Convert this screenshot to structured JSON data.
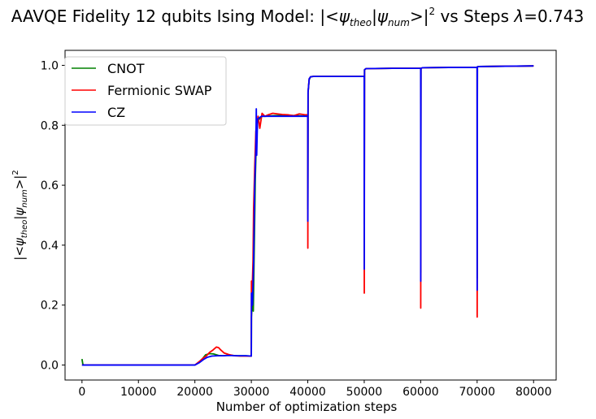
{
  "chart_data": {
    "type": "line",
    "title": {
      "main": "AAVQE Fidelity 12 qubits Ising Model: |<",
      "psi": "ψ",
      "theo": "theo",
      "bar": "|",
      "num": "num",
      "close": ">|",
      "sq": "2",
      "tail": " vs Steps ",
      "lambda": "λ",
      "value": "=0.743"
    },
    "xlabel": "Number of optimization steps",
    "ylabel": {
      "open": "|<",
      "psi": "ψ",
      "theo": "theo",
      "bar": "|",
      "num": "num",
      "close": ">|",
      "sq": "2"
    },
    "xlim": [
      -3000,
      84000
    ],
    "ylim": [
      -0.05,
      1.05
    ],
    "xticks": [
      0,
      10000,
      20000,
      30000,
      40000,
      50000,
      60000,
      70000,
      80000
    ],
    "yticks": [
      0.0,
      0.2,
      0.4,
      0.6,
      0.8,
      1.0
    ],
    "xtick_labels": [
      "0",
      "10000",
      "20000",
      "30000",
      "40000",
      "50000",
      "60000",
      "70000",
      "80000"
    ],
    "ytick_labels": [
      "0.0",
      "0.2",
      "0.4",
      "0.6",
      "0.8",
      "1.0"
    ],
    "grid": false,
    "legend_position": "upper-left",
    "series": [
      {
        "name": "CNOT",
        "color": "#008000",
        "x": [
          0,
          150,
          300,
          20000,
          20700,
          21300,
          21900,
          22600,
          23300,
          24200,
          25000,
          26000,
          27500,
          29000,
          30000,
          30020,
          30150,
          30350,
          30550,
          30700,
          30900,
          31100,
          31400,
          31800,
          32500,
          34000,
          36000,
          38000,
          40000,
          40010,
          40050,
          40250,
          40500,
          41000,
          45000,
          50000,
          50010,
          50050,
          50300,
          55000,
          60000,
          60010,
          60050,
          60300,
          65000,
          70000,
          70010,
          70050,
          70300,
          75000,
          80000
        ],
        "y": [
          0.02,
          0.003,
          0.0,
          0.0,
          0.009,
          0.02,
          0.034,
          0.038,
          0.037,
          0.032,
          0.031,
          0.033,
          0.031,
          0.031,
          0.03,
          0.16,
          0.2,
          0.18,
          0.43,
          0.62,
          0.76,
          0.81,
          0.82,
          0.83,
          0.83,
          0.832,
          0.834,
          0.832,
          0.83,
          0.52,
          0.91,
          0.952,
          0.962,
          0.963,
          0.963,
          0.963,
          0.47,
          0.985,
          0.989,
          0.99,
          0.99,
          0.31,
          0.99,
          0.992,
          0.993,
          0.993,
          0.29,
          0.995,
          0.996,
          0.997,
          0.998
        ]
      },
      {
        "name": "Fermionic SWAP",
        "color": "#ff0000",
        "x": [
          0,
          20000,
          20800,
          21400,
          22000,
          22600,
          23200,
          23800,
          24200,
          24600,
          25200,
          26000,
          27000,
          28000,
          29000,
          30000,
          30020,
          30150,
          30300,
          30400,
          30600,
          30800,
          31000,
          31200,
          31500,
          31900,
          32400,
          33000,
          33800,
          34600,
          35500,
          36500,
          37500,
          38500,
          39500,
          40000,
          40010,
          40050,
          40250,
          40500,
          41000,
          45000,
          50000,
          50010,
          50050,
          50300,
          55000,
          60000,
          60010,
          60050,
          60300,
          65000,
          70000,
          70010,
          70050,
          70300,
          75000,
          80000
        ],
        "y": [
          0.0,
          0.0,
          0.012,
          0.022,
          0.03,
          0.042,
          0.05,
          0.06,
          0.058,
          0.05,
          0.04,
          0.035,
          0.031,
          0.03,
          0.03,
          0.03,
          0.28,
          0.25,
          0.35,
          0.52,
          0.66,
          0.78,
          0.81,
          0.83,
          0.79,
          0.84,
          0.83,
          0.835,
          0.84,
          0.838,
          0.836,
          0.835,
          0.832,
          0.838,
          0.835,
          0.835,
          0.39,
          0.91,
          0.955,
          0.962,
          0.963,
          0.963,
          0.963,
          0.24,
          0.985,
          0.989,
          0.99,
          0.99,
          0.19,
          0.99,
          0.992,
          0.993,
          0.993,
          0.16,
          0.995,
          0.996,
          0.997,
          0.998
        ]
      },
      {
        "name": "CZ",
        "color": "#0000ff",
        "x": [
          0,
          20000,
          20800,
          21500,
          22200,
          23000,
          24000,
          25000,
          26000,
          27500,
          29000,
          30000,
          30020,
          30200,
          30400,
          30600,
          30800,
          30880,
          30950,
          31100,
          31400,
          31800,
          32500,
          34000,
          36000,
          38000,
          40000,
          40010,
          40050,
          40250,
          40500,
          41000,
          45000,
          50000,
          50010,
          50050,
          50300,
          55000,
          60000,
          60010,
          60050,
          60300,
          65000,
          70000,
          70010,
          70050,
          70300,
          75000,
          80000
        ],
        "y": [
          0.0,
          0.0,
          0.008,
          0.018,
          0.026,
          0.03,
          0.031,
          0.031,
          0.032,
          0.031,
          0.031,
          0.03,
          0.24,
          0.2,
          0.34,
          0.6,
          0.72,
          0.855,
          0.7,
          0.82,
          0.825,
          0.83,
          0.83,
          0.83,
          0.83,
          0.83,
          0.83,
          0.48,
          0.91,
          0.955,
          0.962,
          0.963,
          0.963,
          0.963,
          0.32,
          0.985,
          0.989,
          0.99,
          0.99,
          0.28,
          0.99,
          0.992,
          0.993,
          0.993,
          0.25,
          0.995,
          0.996,
          0.997,
          0.998
        ]
      }
    ]
  }
}
